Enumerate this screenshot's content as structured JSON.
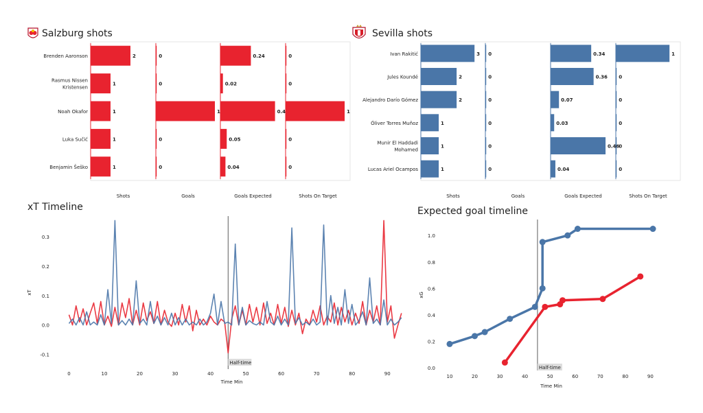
{
  "colors": {
    "salzburg": "#e8232f",
    "sevilla": "#4a76a8",
    "halftime_line": "#777777",
    "label_bg": "#dddddd",
    "panel_border": "#e6e6e6"
  },
  "icons": {
    "salzburg": "salzburg-crest-icon",
    "sevilla": "sevilla-crest-icon"
  },
  "chart_data": [
    {
      "type": "bar",
      "orientation": "horizontal",
      "title": "Salzburg shots",
      "players": [
        "Brenden  Aaronson",
        "Rasmus Nissen\nKristensen",
        "Noah Okafor",
        "Luka Sučić",
        "Benjamin Šeško"
      ],
      "metrics": [
        "Shots",
        "Goals",
        "Goals Expected",
        "Shots On Target"
      ],
      "values": [
        [
          2,
          0,
          0.24,
          0
        ],
        [
          1,
          0,
          0.02,
          0
        ],
        [
          1,
          1,
          0.43,
          1
        ],
        [
          1,
          0,
          0.05,
          0
        ],
        [
          1,
          0,
          0.04,
          0
        ]
      ],
      "labels": [
        [
          "2",
          "0",
          "0.24",
          "0"
        ],
        [
          "1",
          "0",
          "0.02",
          "0"
        ],
        [
          "1",
          "1",
          "0.43",
          "1"
        ],
        [
          "1",
          "0",
          "0.05",
          "0"
        ],
        [
          "1",
          "0",
          "0.04",
          "0"
        ]
      ],
      "max": [
        3,
        1,
        0.47,
        1
      ]
    },
    {
      "type": "bar",
      "orientation": "horizontal",
      "title": "Sevilla shots",
      "players": [
        "Ivan Rakitić",
        "Jules Koundé",
        "Alejandro Darío Gómez",
        "Óliver Torres Muñoz",
        "Munir El Haddadi\nMohamed",
        "Lucas Ariel Ocampos"
      ],
      "metrics": [
        "Shots",
        "Goals",
        "Goals Expected",
        "Shots On Target"
      ],
      "values": [
        [
          3,
          0,
          0.34,
          1
        ],
        [
          2,
          0,
          0.36,
          0
        ],
        [
          2,
          0,
          0.07,
          0
        ],
        [
          1,
          0,
          0.03,
          0
        ],
        [
          1,
          0,
          0.46,
          0
        ],
        [
          1,
          0,
          0.04,
          0
        ]
      ],
      "labels": [
        [
          "3",
          "0",
          "0.34",
          "1"
        ],
        [
          "2",
          "0",
          "0.36",
          "0"
        ],
        [
          "2",
          "0",
          "0.07",
          "0"
        ],
        [
          "1",
          "0",
          "0.03",
          "0"
        ],
        [
          "1",
          "0",
          "0.46",
          "0"
        ],
        [
          "1",
          "0",
          "0.04",
          "0"
        ]
      ],
      "max": [
        3.3,
        1,
        0.5,
        1.1
      ]
    },
    {
      "type": "line",
      "title": "xT Timeline",
      "xlabel": "Time Min",
      "ylabel": "xT",
      "xlim": [
        -3,
        95
      ],
      "ylim": [
        -0.15,
        0.37
      ],
      "xticks": [
        0,
        10,
        20,
        30,
        40,
        50,
        60,
        70,
        80,
        90
      ],
      "yticks": [
        -0.1,
        0.0,
        0.1,
        0.2,
        0.3
      ],
      "ytick_labels": [
        "-0.1",
        "0.0",
        "0.1",
        "0.2",
        "0.3"
      ],
      "halftime_label": "Half-time",
      "halftime_x": 45,
      "series": [
        {
          "color_key": "salzburg",
          "values": [
            [
              0,
              0.035
            ],
            [
              1,
              0.0
            ],
            [
              2,
              0.065
            ],
            [
              3,
              0.01
            ],
            [
              4,
              0.055
            ],
            [
              5,
              0.0
            ],
            [
              6,
              0.04
            ],
            [
              7,
              0.075
            ],
            [
              8,
              0.005
            ],
            [
              9,
              0.08
            ],
            [
              10,
              0.0
            ],
            [
              11,
              0.03
            ],
            [
              12,
              -0.005
            ],
            [
              13,
              0.06
            ],
            [
              14,
              0.0
            ],
            [
              15,
              0.075
            ],
            [
              16,
              0.025
            ],
            [
              17,
              0.09
            ],
            [
              18,
              0.0
            ],
            [
              19,
              0.05
            ],
            [
              20,
              0.0
            ],
            [
              21,
              0.075
            ],
            [
              22,
              0.015
            ],
            [
              23,
              0.045
            ],
            [
              24,
              0.005
            ],
            [
              25,
              0.08
            ],
            [
              26,
              0.0
            ],
            [
              27,
              0.05
            ],
            [
              28,
              0.01
            ],
            [
              29,
              -0.005
            ],
            [
              30,
              0.04
            ],
            [
              31,
              0.0
            ],
            [
              32,
              0.07
            ],
            [
              33,
              0.01
            ],
            [
              34,
              0.065
            ],
            [
              35,
              -0.02
            ],
            [
              36,
              0.05
            ],
            [
              37,
              0.0
            ],
            [
              38,
              0.02
            ],
            [
              39,
              0.0
            ],
            [
              40,
              0.03
            ],
            [
              41,
              0.01
            ],
            [
              42,
              0.0
            ],
            [
              43,
              0.02
            ],
            [
              44,
              0.01
            ],
            [
              45,
              -0.095
            ],
            [
              46,
              0.02
            ],
            [
              47,
              0.065
            ],
            [
              48,
              0.0
            ],
            [
              49,
              0.05
            ],
            [
              50,
              0.0
            ],
            [
              51,
              0.07
            ],
            [
              52,
              0.01
            ],
            [
              53,
              0.06
            ],
            [
              54,
              0.0
            ],
            [
              55,
              0.075
            ],
            [
              56,
              0.005
            ],
            [
              57,
              0.04
            ],
            [
              58,
              0.0
            ],
            [
              59,
              0.07
            ],
            [
              60,
              0.005
            ],
            [
              61,
              0.06
            ],
            [
              62,
              -0.005
            ],
            [
              63,
              0.05
            ],
            [
              64,
              0.0
            ],
            [
              65,
              0.04
            ],
            [
              66,
              -0.03
            ],
            [
              67,
              0.02
            ],
            [
              68,
              0.0
            ],
            [
              69,
              0.05
            ],
            [
              70,
              0.01
            ],
            [
              71,
              0.065
            ],
            [
              72,
              0.0
            ],
            [
              73,
              0.03
            ],
            [
              74,
              0.01
            ],
            [
              75,
              0.075
            ],
            [
              76,
              0.0
            ],
            [
              77,
              0.06
            ],
            [
              78,
              0.01
            ],
            [
              79,
              0.05
            ],
            [
              80,
              0.0
            ],
            [
              81,
              0.04
            ],
            [
              82,
              0.005
            ],
            [
              83,
              0.08
            ],
            [
              84,
              0.0
            ],
            [
              85,
              0.05
            ],
            [
              86,
              0.01
            ],
            [
              87,
              0.065
            ],
            [
              88,
              0.0
            ],
            [
              89,
              0.355
            ],
            [
              90,
              0.01
            ],
            [
              91,
              0.065
            ],
            [
              92,
              -0.045
            ],
            [
              93,
              0.0
            ],
            [
              94,
              0.04
            ]
          ]
        },
        {
          "color_key": "sevilla",
          "values": [
            [
              0,
              0.005
            ],
            [
              1,
              0.02
            ],
            [
              2,
              0.0
            ],
            [
              3,
              0.025
            ],
            [
              4,
              0.0
            ],
            [
              5,
              0.045
            ],
            [
              6,
              0.0
            ],
            [
              7,
              0.01
            ],
            [
              8,
              0.0
            ],
            [
              9,
              0.035
            ],
            [
              10,
              0.0
            ],
            [
              11,
              0.12
            ],
            [
              12,
              0.005
            ],
            [
              13,
              0.355
            ],
            [
              14,
              0.0
            ],
            [
              15,
              0.015
            ],
            [
              16,
              0.0
            ],
            [
              17,
              0.02
            ],
            [
              18,
              0.0
            ],
            [
              19,
              0.15
            ],
            [
              20,
              0.005
            ],
            [
              21,
              0.02
            ],
            [
              22,
              0.0
            ],
            [
              23,
              0.08
            ],
            [
              24,
              0.005
            ],
            [
              25,
              0.03
            ],
            [
              26,
              0.0
            ],
            [
              27,
              0.025
            ],
            [
              28,
              0.0
            ],
            [
              29,
              0.04
            ],
            [
              30,
              0.0
            ],
            [
              31,
              0.025
            ],
            [
              32,
              0.0
            ],
            [
              33,
              0.02
            ],
            [
              34,
              0.0
            ],
            [
              35,
              0.01
            ],
            [
              36,
              0.0
            ],
            [
              37,
              0.02
            ],
            [
              38,
              0.0
            ],
            [
              39,
              0.01
            ],
            [
              40,
              0.04
            ],
            [
              41,
              0.105
            ],
            [
              42,
              0.0
            ],
            [
              43,
              0.08
            ],
            [
              44,
              0.005
            ],
            [
              45,
              0.01
            ],
            [
              46,
              0.0
            ],
            [
              47,
              0.275
            ],
            [
              48,
              0.0
            ],
            [
              49,
              0.06
            ],
            [
              50,
              0.0
            ],
            [
              51,
              0.015
            ],
            [
              52,
              0.005
            ],
            [
              53,
              0.0
            ],
            [
              54,
              0.01
            ],
            [
              55,
              0.0
            ],
            [
              56,
              0.08
            ],
            [
              57,
              0.01
            ],
            [
              58,
              0.0
            ],
            [
              59,
              0.03
            ],
            [
              60,
              0.0
            ],
            [
              61,
              0.02
            ],
            [
              62,
              0.0
            ],
            [
              63,
              0.33
            ],
            [
              64,
              0.005
            ],
            [
              65,
              0.025
            ],
            [
              66,
              0.0
            ],
            [
              67,
              0.01
            ],
            [
              68,
              0.0
            ],
            [
              69,
              0.02
            ],
            [
              70,
              0.0
            ],
            [
              71,
              0.01
            ],
            [
              72,
              0.34
            ],
            [
              73,
              0.0
            ],
            [
              74,
              0.1
            ],
            [
              75,
              0.005
            ],
            [
              76,
              0.06
            ],
            [
              77,
              0.0
            ],
            [
              78,
              0.12
            ],
            [
              79,
              0.005
            ],
            [
              80,
              0.07
            ],
            [
              81,
              0.0
            ],
            [
              82,
              0.015
            ],
            [
              83,
              0.045
            ],
            [
              84,
              0.0
            ],
            [
              85,
              0.16
            ],
            [
              86,
              0.005
            ],
            [
              87,
              0.02
            ],
            [
              88,
              0.0
            ],
            [
              89,
              0.085
            ],
            [
              90,
              0.0
            ],
            [
              91,
              0.02
            ],
            [
              92,
              0.0
            ],
            [
              93,
              0.01
            ],
            [
              94,
              0.025
            ]
          ]
        }
      ]
    },
    {
      "type": "line",
      "title": "Expected goal timeline",
      "xlabel": "Time Min",
      "ylabel": "xG",
      "xlim": [
        7,
        94
      ],
      "ylim": [
        -0.02,
        1.12
      ],
      "xticks": [
        10,
        20,
        30,
        40,
        50,
        60,
        70,
        80,
        90
      ],
      "yticks": [
        0.0,
        0.2,
        0.4,
        0.6,
        0.8,
        1.0
      ],
      "ytick_labels": [
        "0.0",
        "0.2",
        "0.4",
        "0.6",
        "0.8",
        "1.0"
      ],
      "halftime_label": "Half-time",
      "halftime_x": 45,
      "series": [
        {
          "color_key": "sevilla",
          "x": [
            10,
            20,
            24,
            34,
            44,
            47,
            47,
            57,
            61,
            91
          ],
          "y": [
            0.18,
            0.24,
            0.27,
            0.37,
            0.46,
            0.6,
            0.95,
            1.0,
            1.05,
            1.05
          ]
        },
        {
          "color_key": "salzburg",
          "x": [
            32,
            48,
            54,
            55,
            71,
            86
          ],
          "y": [
            0.04,
            0.46,
            0.48,
            0.51,
            0.52,
            0.69
          ]
        }
      ]
    }
  ]
}
